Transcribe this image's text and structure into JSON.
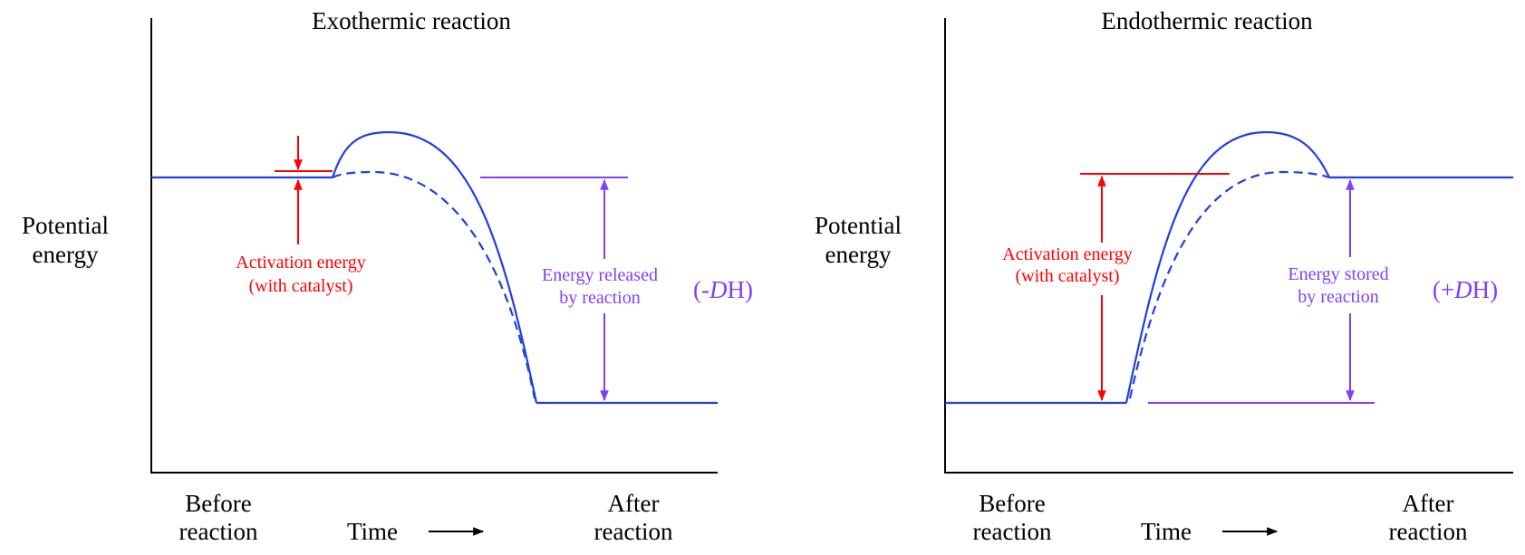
{
  "colors": {
    "axis": "#000000",
    "curve": "#1f3fe6",
    "activation": "#ff0000",
    "enthalpy": "#7f3fff"
  },
  "exothermic": {
    "title": "Exothermic reaction",
    "y_label_line1": "Potential",
    "y_label_line2": "energy",
    "activation_line1": "Activation energy",
    "activation_line2": "(with catalyst)",
    "energy_line1": "Energy released",
    "energy_line2": "by reaction",
    "dh_prefix": "(-",
    "dh_symbol": "D",
    "dh_suffix": "H)",
    "before_line1": "Before",
    "before_line2": "reaction",
    "time_label": "Time",
    "after_line1": "After",
    "after_line2": "reaction"
  },
  "endothermic": {
    "title": "Endothermic reaction",
    "y_label_line1": "Potential",
    "y_label_line2": "energy",
    "activation_line1": "Activation energy",
    "activation_line2": "(with catalyst)",
    "energy_line1": "Energy stored",
    "energy_line2": "by reaction",
    "dh_prefix": "(+",
    "dh_symbol": "D",
    "dh_suffix": "H)",
    "before_line1": "Before",
    "before_line2": "reaction",
    "time_label": "Time",
    "after_line1": "After",
    "after_line2": "reaction"
  }
}
